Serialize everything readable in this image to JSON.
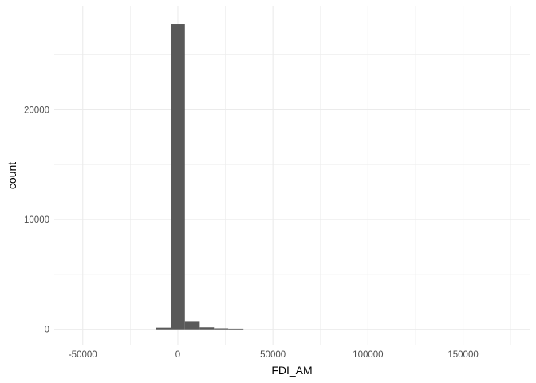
{
  "chart_data": {
    "type": "bar",
    "subtype": "histogram",
    "title": "",
    "xlabel": "FDI_AM",
    "ylabel": "count",
    "xlim": [
      -65000,
      185000
    ],
    "ylim": [
      -1400,
      29400
    ],
    "x_ticks": [
      {
        "value": -50000,
        "label": "-50000"
      },
      {
        "value": 0,
        "label": "0"
      },
      {
        "value": 50000,
        "label": "50000"
      },
      {
        "value": 100000,
        "label": "100000"
      },
      {
        "value": 150000,
        "label": "150000"
      }
    ],
    "x_minor_ticks": [
      -25000,
      25000,
      75000,
      125000,
      175000
    ],
    "y_ticks": [
      {
        "value": 0,
        "label": "0"
      },
      {
        "value": 10000,
        "label": "10000"
      },
      {
        "value": 20000,
        "label": "20000"
      }
    ],
    "y_minor_ticks": [
      5000,
      15000,
      25000
    ],
    "grid": true,
    "bar_color": "#595959",
    "grid_color": "#ebebeb",
    "bins": [
      {
        "x0": -11500,
        "x1": -3500,
        "count": 150
      },
      {
        "x0": -3500,
        "x1": 3700,
        "count": 27800
      },
      {
        "x0": 3700,
        "x1": 11500,
        "count": 750
      },
      {
        "x0": 11500,
        "x1": 19000,
        "count": 180
      },
      {
        "x0": 19000,
        "x1": 26500,
        "count": 90
      },
      {
        "x0": 26500,
        "x1": 34500,
        "count": 60
      }
    ]
  }
}
